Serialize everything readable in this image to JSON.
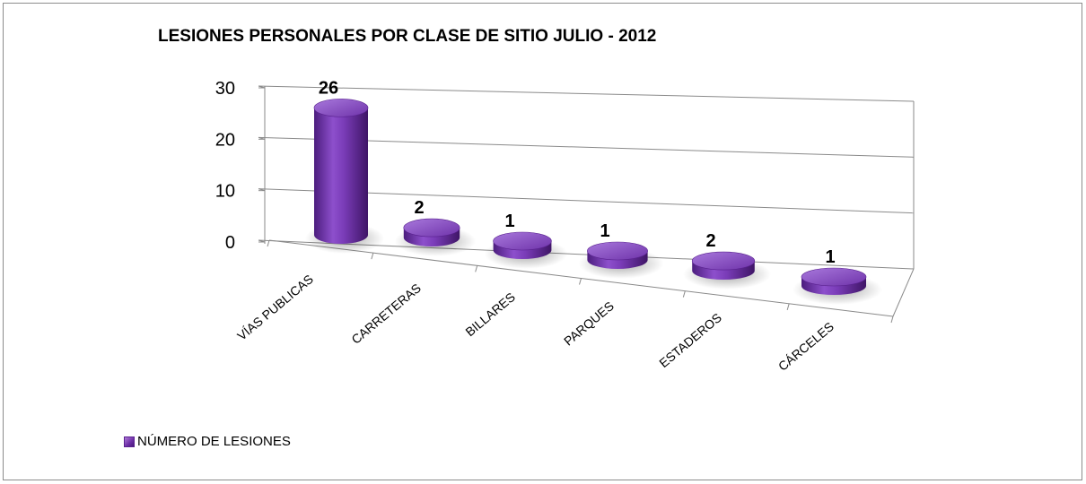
{
  "chart_data": {
    "type": "bar",
    "title": "LESIONES PERSONALES POR CLASE DE SITIO JULIO - 2012",
    "categories": [
      "VÍAS PUBLICAS",
      "CARRETERAS",
      "BILLARES",
      "PARQUES",
      "ESTADEROS",
      "CÁRCELES"
    ],
    "series": [
      {
        "name": "NÚMERO DE LESIONES",
        "values": [
          26,
          2,
          1,
          1,
          2,
          1
        ]
      }
    ],
    "data_labels": [
      "26",
      "2",
      "1",
      "1",
      "2",
      "1"
    ],
    "yticks": [
      "0",
      "10",
      "20",
      "30"
    ],
    "ylim": [
      0,
      30
    ],
    "grid": true,
    "legend": "bottom-left",
    "bar_color": "#6c2ea6",
    "style": "3d-cylinder"
  }
}
